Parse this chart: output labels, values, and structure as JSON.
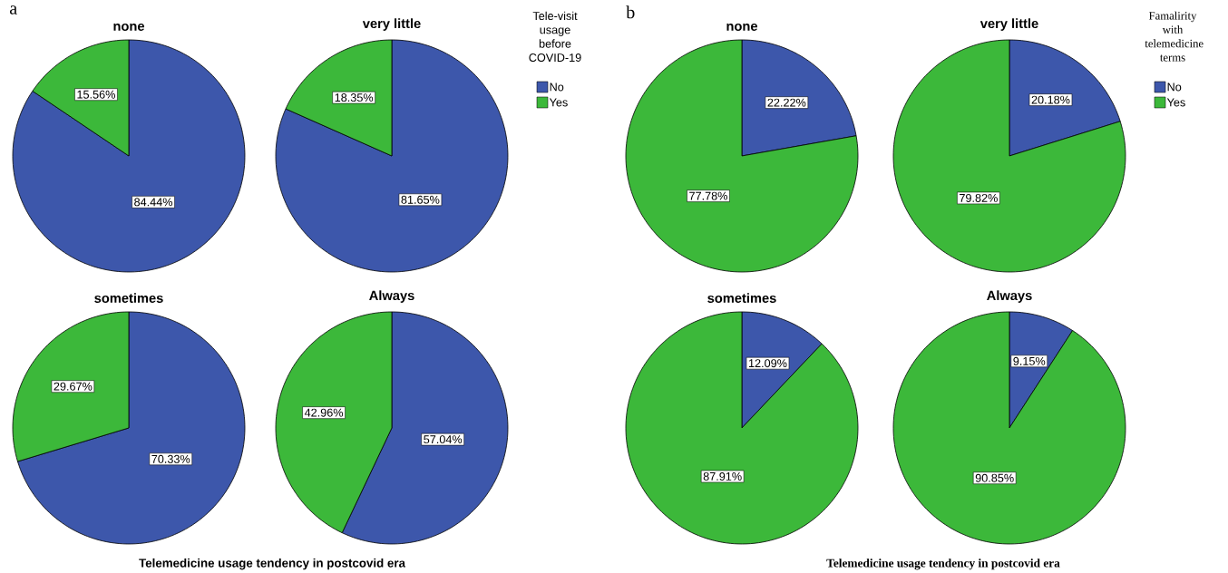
{
  "chart_data": [
    {
      "type": "pie",
      "title": "none",
      "categories": [
        null,
        null
      ],
      "values": [
        84.44,
        15.56
      ],
      "value_labels": [
        "84.44%",
        "15.56%"
      ],
      "colors": [
        "#3d57ab",
        "#3cb83a"
      ],
      "annotations": [
        "a",
        "Telemedicine usage tendency in postcovid era"
      ]
    },
    {
      "type": "pie",
      "title": "very little",
      "categories": [
        "No",
        "Yes"
      ],
      "values": [
        81.65,
        18.35
      ],
      "value_labels": [
        "81.65%",
        "18.35%"
      ],
      "colors": [
        "#3d57ab",
        "#3cb83a"
      ],
      "legend": "right",
      "legend_title": "Tele-visit usage before COVID-19"
    },
    {
      "type": "pie",
      "title": "sometimes",
      "categories": [
        null,
        null
      ],
      "values": [
        70.33,
        29.67
      ],
      "value_labels": [
        "70.33%",
        "29.67%"
      ],
      "colors": [
        "#3d57ab",
        "#3cb83a"
      ]
    },
    {
      "type": "pie",
      "title": "Always",
      "categories": [
        null,
        null
      ],
      "values": [
        57.04,
        42.96
      ],
      "value_labels": [
        "57.04%",
        "42.96%"
      ],
      "colors": [
        "#3d57ab",
        "#3cb83a"
      ]
    },
    {
      "type": "pie",
      "title": "none",
      "categories": [
        null,
        null
      ],
      "values": [
        22.22,
        77.78
      ],
      "value_labels": [
        "22.22%",
        "77.78%"
      ],
      "colors": [
        "#3d57ab",
        "#3cb83a"
      ],
      "annotations": [
        "b",
        "Telemedicine usage tendency in postcovid era"
      ]
    },
    {
      "type": "pie",
      "title": "very little",
      "categories": [
        "No",
        "Yes"
      ],
      "values": [
        20.18,
        79.82
      ],
      "value_labels": [
        "20.18%",
        "79.82%"
      ],
      "colors": [
        "#3d57ab",
        "#3cb83a"
      ],
      "legend": "right",
      "legend_title": "Famalirity with telemedicine terms"
    },
    {
      "type": "pie",
      "title": "sometimes",
      "categories": [
        null,
        null
      ],
      "values": [
        12.09,
        87.91
      ],
      "value_labels": [
        "12.09%",
        "87.91%"
      ],
      "colors": [
        "#3d57ab",
        "#3cb83a"
      ]
    },
    {
      "type": "pie",
      "title": "Always",
      "categories": [
        null,
        null
      ],
      "values": [
        9.15,
        90.85
      ],
      "value_labels": [
        "9.15%",
        "90.85%"
      ],
      "colors": [
        "#3d57ab",
        "#3cb83a"
      ]
    }
  ]
}
